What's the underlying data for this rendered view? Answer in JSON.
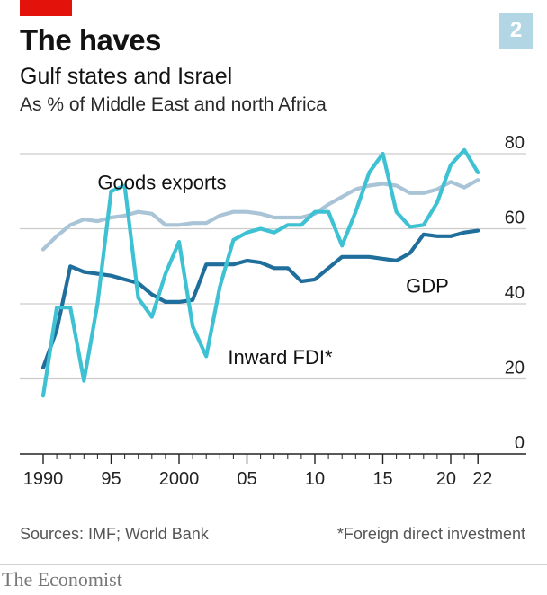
{
  "header": {
    "title": "The haves",
    "badge": "2",
    "subtitle": "Gulf states and Israel",
    "unit": "As % of Middle East and north Africa"
  },
  "footer": {
    "sources": "Sources: IMF; World Bank",
    "footnote": "*Foreign direct investment",
    "brand": "The Economist"
  },
  "colors": {
    "gdp": "#1f6e9c",
    "exports": "#a9c4d6",
    "fdi": "#3ec1d3",
    "grid": "#cccccc",
    "axis": "#222222",
    "accent": "#e3120b"
  },
  "chart_data": {
    "type": "line",
    "title": "The haves",
    "ylim": [
      0,
      80
    ],
    "y_ticks": [
      0,
      20,
      40,
      60,
      80
    ],
    "y_tick_labels": [
      "0",
      "20",
      "40",
      "60",
      "80"
    ],
    "xlim": [
      1989,
      2026
    ],
    "x_ticks": [
      1990,
      1995,
      2000,
      2005,
      2010,
      2015,
      2020,
      2022
    ],
    "x_tick_labels": [
      "1990",
      "95",
      "2000",
      "05",
      "10",
      "15",
      "20",
      "22"
    ],
    "grid": true,
    "series": [
      {
        "name": "Goods exports",
        "color_key": "exports",
        "x": [
          1990,
          1991,
          1992,
          1993,
          1994,
          1995,
          1996,
          1997,
          1998,
          1999,
          2000,
          2001,
          2002,
          2003,
          2004,
          2005,
          2006,
          2007,
          2008,
          2009,
          2010,
          2011,
          2012,
          2013,
          2014,
          2015,
          2016,
          2017,
          2018,
          2019,
          2020,
          2021,
          2022
        ],
        "values": [
          54.5,
          58,
          61,
          62.5,
          62,
          63,
          63.5,
          64.5,
          64,
          61,
          61,
          61.5,
          61.5,
          63.5,
          64.5,
          64.5,
          64,
          63,
          63,
          63,
          64,
          66.5,
          68.5,
          70.5,
          71.5,
          72,
          71.5,
          69.5,
          69.5,
          70.5,
          72.5,
          71,
          73
        ]
      },
      {
        "name": "GDP",
        "color_key": "gdp",
        "x": [
          1990,
          1991,
          1992,
          1993,
          1994,
          1995,
          1996,
          1997,
          1998,
          1999,
          2000,
          2001,
          2002,
          2003,
          2004,
          2005,
          2006,
          2007,
          2008,
          2009,
          2010,
          2011,
          2012,
          2013,
          2014,
          2015,
          2016,
          2017,
          2018,
          2019,
          2020,
          2021,
          2022
        ],
        "values": [
          23,
          33,
          50,
          48.5,
          48,
          47.5,
          46.5,
          45.5,
          42.5,
          40.5,
          40.5,
          41,
          50.5,
          50.5,
          50.5,
          51.5,
          51,
          49.5,
          49.5,
          46,
          46.5,
          49.5,
          52.5,
          52.5,
          52.5,
          52,
          51.5,
          53.5,
          58.5,
          58,
          58,
          59,
          59.5
        ]
      },
      {
        "name": "Inward FDI*",
        "color_key": "fdi",
        "x": [
          1990,
          1991,
          1992,
          1993,
          1994,
          1995,
          1996,
          1997,
          1998,
          1999,
          2000,
          2001,
          2002,
          2003,
          2004,
          2005,
          2006,
          2007,
          2008,
          2009,
          2010,
          2011,
          2012,
          2013,
          2014,
          2015,
          2016,
          2017,
          2018,
          2019,
          2020,
          2021,
          2022
        ],
        "values": [
          15.5,
          39,
          39,
          19.5,
          40,
          70,
          71.5,
          41.5,
          36.5,
          48,
          56.5,
          34,
          26,
          44.5,
          57,
          59,
          60,
          59,
          61,
          61,
          64.5,
          64.5,
          55.5,
          64.5,
          75,
          80,
          64.5,
          60.5,
          61,
          67,
          77,
          81,
          75
        ]
      }
    ],
    "annotations": [
      {
        "text": "Goods exports",
        "series": "Goods exports"
      },
      {
        "text": "GDP",
        "series": "GDP"
      },
      {
        "text": "Inward FDI*",
        "series": "Inward FDI*"
      }
    ]
  }
}
